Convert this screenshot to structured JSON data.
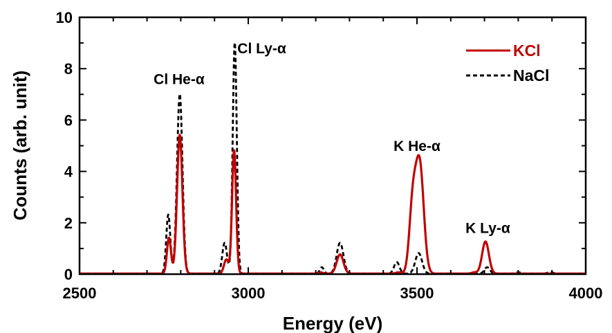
{
  "chart_data": {
    "type": "line",
    "xlabel": "Energy (eV)",
    "ylabel": "Counts (arb. unit)",
    "xlim": [
      2500,
      4000
    ],
    "ylim": [
      0,
      10
    ],
    "x_ticks": [
      "2500",
      "3000",
      "3500",
      "4000"
    ],
    "y_ticks": [
      "0",
      "2",
      "4",
      "6",
      "8",
      "10"
    ],
    "grid": false,
    "legend_position": "top-right",
    "annotations": [
      {
        "text": "Cl He-α",
        "x": 2795,
        "y": 7.4
      },
      {
        "text": "Cl Ly-α",
        "x": 3040,
        "y": 8.6
      },
      {
        "text": "K He-α",
        "x": 3500,
        "y": 4.8
      },
      {
        "text": "K Ly-α",
        "x": 3710,
        "y": 1.6
      }
    ],
    "series": [
      {
        "name": "KCl",
        "color": "#c00000",
        "style": "solid",
        "peaks": [
          {
            "x": 2765,
            "h": 1.4,
            "w": 6
          },
          {
            "x": 2797,
            "h": 5.4,
            "w": 8
          },
          {
            "x": 2935,
            "h": 0.55,
            "w": 7
          },
          {
            "x": 2958,
            "h": 4.8,
            "w": 6
          },
          {
            "x": 3215,
            "h": 0.05,
            "w": 6
          },
          {
            "x": 3272,
            "h": 0.75,
            "w": 10
          },
          {
            "x": 3445,
            "h": 0.05,
            "w": 8
          },
          {
            "x": 3487,
            "h": 2.5,
            "w": 10
          },
          {
            "x": 3508,
            "h": 4.25,
            "w": 12
          },
          {
            "x": 3670,
            "h": 0.05,
            "w": 8
          },
          {
            "x": 3703,
            "h": 1.25,
            "w": 10
          }
        ]
      },
      {
        "name": "NaCl",
        "color": "#000000",
        "style": "dashed",
        "peaks": [
          {
            "x": 2763,
            "h": 2.3,
            "w": 6
          },
          {
            "x": 2797,
            "h": 7.0,
            "w": 8
          },
          {
            "x": 2930,
            "h": 1.2,
            "w": 7
          },
          {
            "x": 2960,
            "h": 9.0,
            "w": 6
          },
          {
            "x": 3218,
            "h": 0.25,
            "w": 6
          },
          {
            "x": 3272,
            "h": 1.2,
            "w": 10
          },
          {
            "x": 3440,
            "h": 0.45,
            "w": 8
          },
          {
            "x": 3505,
            "h": 0.8,
            "w": 10
          },
          {
            "x": 3708,
            "h": 0.25,
            "w": 8
          },
          {
            "x": 3800,
            "h": 0.05,
            "w": 8
          },
          {
            "x": 3895,
            "h": 0.06,
            "w": 8
          }
        ]
      }
    ]
  }
}
